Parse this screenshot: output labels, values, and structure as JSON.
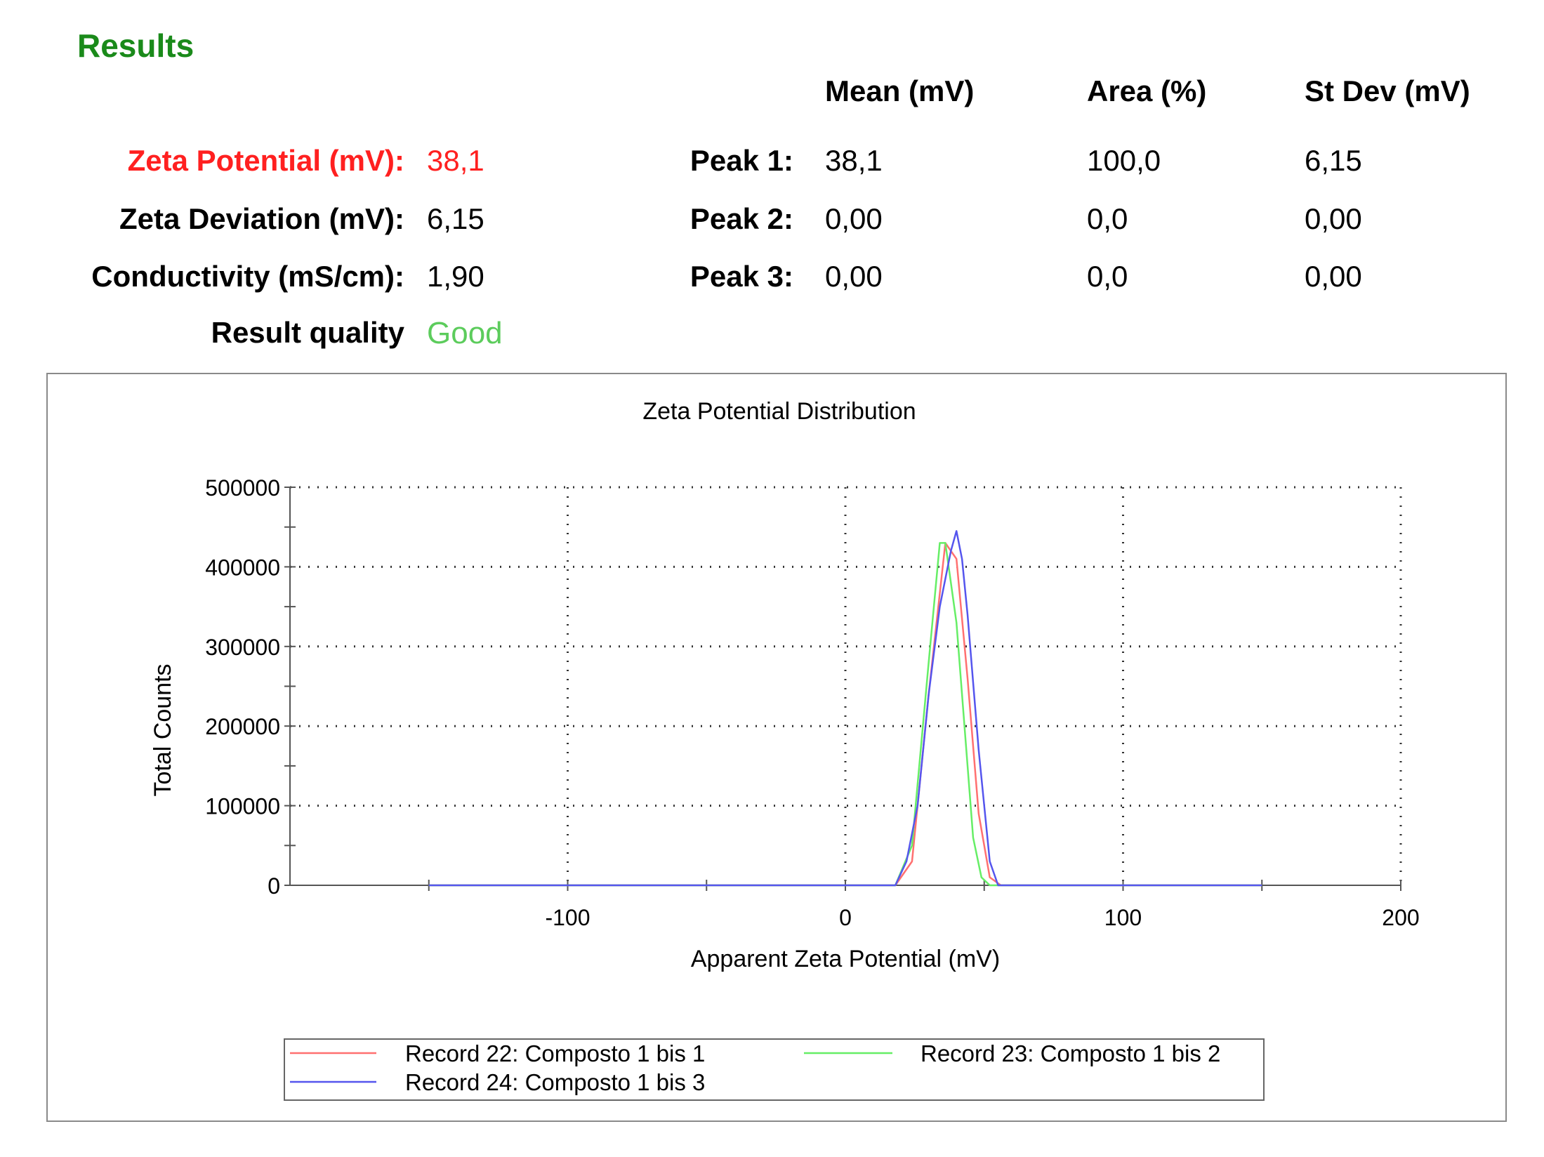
{
  "results": {
    "title": "Results",
    "headers": {
      "mean": "Mean (mV)",
      "area": "Area (%)",
      "stdev": "St Dev (mV)"
    },
    "summary": [
      {
        "label": "Zeta Potential (mV):",
        "value": "38,1"
      },
      {
        "label": "Zeta Deviation (mV):",
        "value": "6,15"
      },
      {
        "label": "Conductivity (mS/cm):",
        "value": "1,90"
      },
      {
        "label": "Result quality",
        "value": "Good"
      }
    ],
    "peaks": [
      {
        "label": "Peak 1:",
        "mean": "38,1",
        "area": "100,0",
        "stdev": "6,15"
      },
      {
        "label": "Peak 2:",
        "mean": "0,00",
        "area": "0,0",
        "stdev": "0,00"
      },
      {
        "label": "Peak 3:",
        "mean": "0,00",
        "area": "0,0",
        "stdev": "0,00"
      }
    ],
    "colors": {
      "title": "#1a8a1a",
      "zeta": "#ff2020",
      "quality": "#5ccc5c"
    }
  },
  "chart_data": {
    "type": "line",
    "title": "Zeta Potential Distribution",
    "xlabel": "Apparent Zeta Potential (mV)",
    "ylabel": "Total Counts",
    "xlim": [
      -200,
      200
    ],
    "ylim": [
      0,
      500000
    ],
    "xticks": [
      -100,
      0,
      100,
      200
    ],
    "yticks": [
      0,
      100000,
      200000,
      300000,
      400000,
      500000
    ],
    "grid": true,
    "legend_position": "bottom",
    "series": [
      {
        "name": "Record 22: Composto 1 bis 1",
        "color": "#ff7070",
        "x": [
          -150,
          18,
          24,
          30,
          36,
          40,
          44,
          48,
          52,
          56,
          150
        ],
        "y": [
          0,
          0,
          30000,
          240000,
          430000,
          410000,
          260000,
          90000,
          10000,
          0,
          0
        ]
      },
      {
        "name": "Record 23: Composto 1 bis 2",
        "color": "#66ee66",
        "x": [
          -150,
          18,
          24,
          30,
          34,
          36,
          40,
          44,
          46,
          49,
          52,
          150
        ],
        "y": [
          0,
          0,
          50000,
          280000,
          430000,
          430000,
          330000,
          150000,
          60000,
          10000,
          0,
          0
        ]
      },
      {
        "name": "Record 24: Composto 1 bis 3",
        "color": "#5555ee",
        "x": [
          -150,
          18,
          22,
          26,
          30,
          34,
          38,
          40,
          42,
          44,
          48,
          52,
          55,
          150
        ],
        "y": [
          0,
          0,
          30000,
          100000,
          240000,
          350000,
          420000,
          445000,
          410000,
          340000,
          170000,
          30000,
          0,
          0
        ]
      }
    ]
  }
}
